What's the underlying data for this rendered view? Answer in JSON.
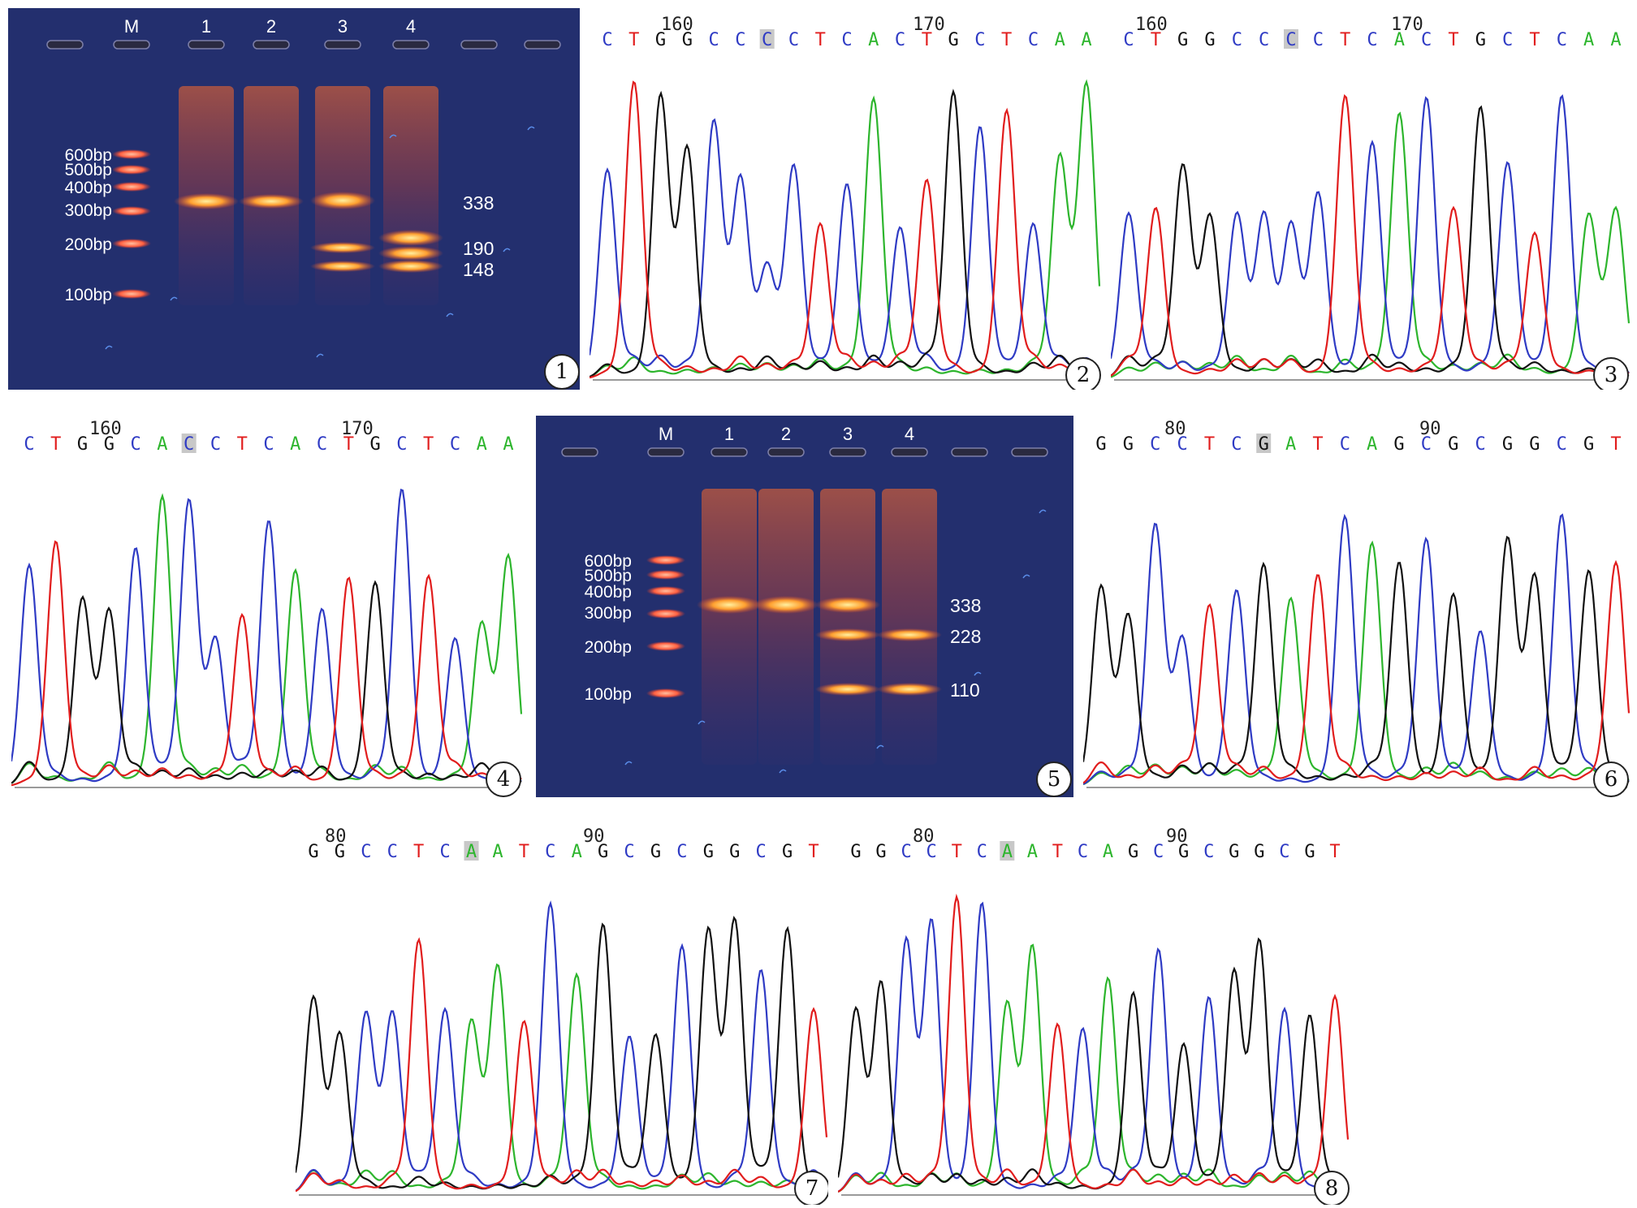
{
  "colors": {
    "A": "#2db52d",
    "C": "#2f3bc4",
    "G": "#111111",
    "T": "#e11d1d",
    "highlight": "#c8c8c8"
  },
  "panels": [
    {
      "num": "1",
      "kind": "gel",
      "lanes": [
        "M",
        "1",
        "2",
        "3",
        "4"
      ],
      "ladder": [
        "600bp",
        "500bp",
        "400bp",
        "300bp",
        "200bp",
        "100bp"
      ],
      "sizes": [
        "338",
        "190",
        "148"
      ]
    },
    {
      "num": "2",
      "kind": "trace",
      "positions": [
        "160",
        "170"
      ],
      "seq": "CTGGCCCCTCACTGCTCAA",
      "marked": 6
    },
    {
      "num": "3",
      "kind": "trace",
      "positions": [
        "160",
        "170"
      ],
      "seq": "CTGGCCCCTCACTGCTCAA",
      "marked": 6
    },
    {
      "num": "4",
      "kind": "trace",
      "positions": [
        "160",
        "170"
      ],
      "seq": "CTGGCACCTCACTGCTCAA",
      "marked": 6
    },
    {
      "num": "5",
      "kind": "gel",
      "lanes": [
        "M",
        "1",
        "2",
        "3",
        "4"
      ],
      "ladder": [
        "600bp",
        "500bp",
        "400bp",
        "300bp",
        "200bp",
        "100bp"
      ],
      "sizes": [
        "338",
        "228",
        "110"
      ]
    },
    {
      "num": "6",
      "kind": "trace",
      "positions": [
        "80",
        "90"
      ],
      "seq": "GGCCTCGATCAGCGCGGCGT",
      "marked": 6
    },
    {
      "num": "7",
      "kind": "trace",
      "positions": [
        "80",
        "90"
      ],
      "seq": "GGCCTCAATCAGCGCGGCGT",
      "marked": 6
    },
    {
      "num": "8",
      "kind": "trace",
      "positions": [
        "80",
        "90"
      ],
      "seq": "GGCCTCAATCAGCGCGGCGT",
      "marked": 6
    }
  ]
}
